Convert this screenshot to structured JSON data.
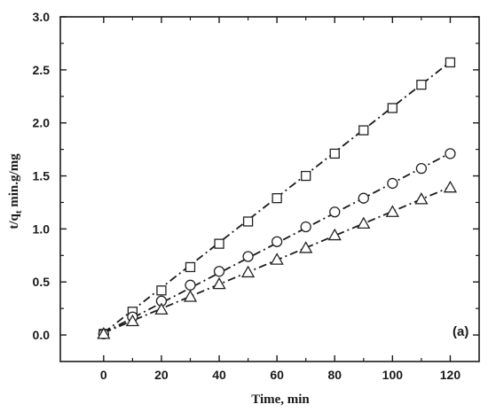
{
  "chart_data": {
    "type": "scatter",
    "xlabel": "Time, min",
    "ylabel": "t/q",
    "ylabel_sub": "t",
    "ylabel_rest": " min.g/mg",
    "panel_label": "(a)",
    "xlim": [
      -15,
      130
    ],
    "ylim": [
      -0.25,
      3.0
    ],
    "xticks": [
      0,
      20,
      40,
      60,
      80,
      100,
      120
    ],
    "yticks": [
      0.0,
      0.5,
      1.0,
      1.5,
      2.0,
      2.5,
      3.0
    ],
    "x_minor_step": 10,
    "y_minor_step": 0.25,
    "grid": false,
    "legend": "none",
    "colors": {
      "axis": "#1a1a1a",
      "marker": "#222222",
      "line": "#1a1a1a",
      "background": "#ffffff"
    },
    "series": [
      {
        "marker": "square",
        "x": [
          0,
          10,
          20,
          30,
          40,
          50,
          60,
          70,
          80,
          90,
          100,
          110,
          120
        ],
        "y": [
          0.01,
          0.22,
          0.42,
          0.64,
          0.86,
          1.07,
          1.29,
          1.5,
          1.71,
          1.93,
          2.14,
          2.36,
          2.57
        ],
        "fit": [
          0.02,
          2.575
        ]
      },
      {
        "marker": "circle",
        "x": [
          0,
          10,
          20,
          30,
          40,
          50,
          60,
          70,
          80,
          90,
          100,
          110,
          120
        ],
        "y": [
          0.01,
          0.17,
          0.32,
          0.47,
          0.6,
          0.74,
          0.88,
          1.02,
          1.16,
          1.29,
          1.43,
          1.57,
          1.71
        ],
        "fit": [
          0.02,
          1.715
        ]
      },
      {
        "marker": "triangle",
        "x": [
          0,
          10,
          20,
          30,
          40,
          50,
          60,
          70,
          80,
          90,
          100,
          110,
          120
        ],
        "y": [
          0.01,
          0.13,
          0.24,
          0.36,
          0.48,
          0.59,
          0.71,
          0.82,
          0.94,
          1.05,
          1.16,
          1.28,
          1.39
        ],
        "fit": [
          0.02,
          1.395
        ]
      }
    ]
  }
}
